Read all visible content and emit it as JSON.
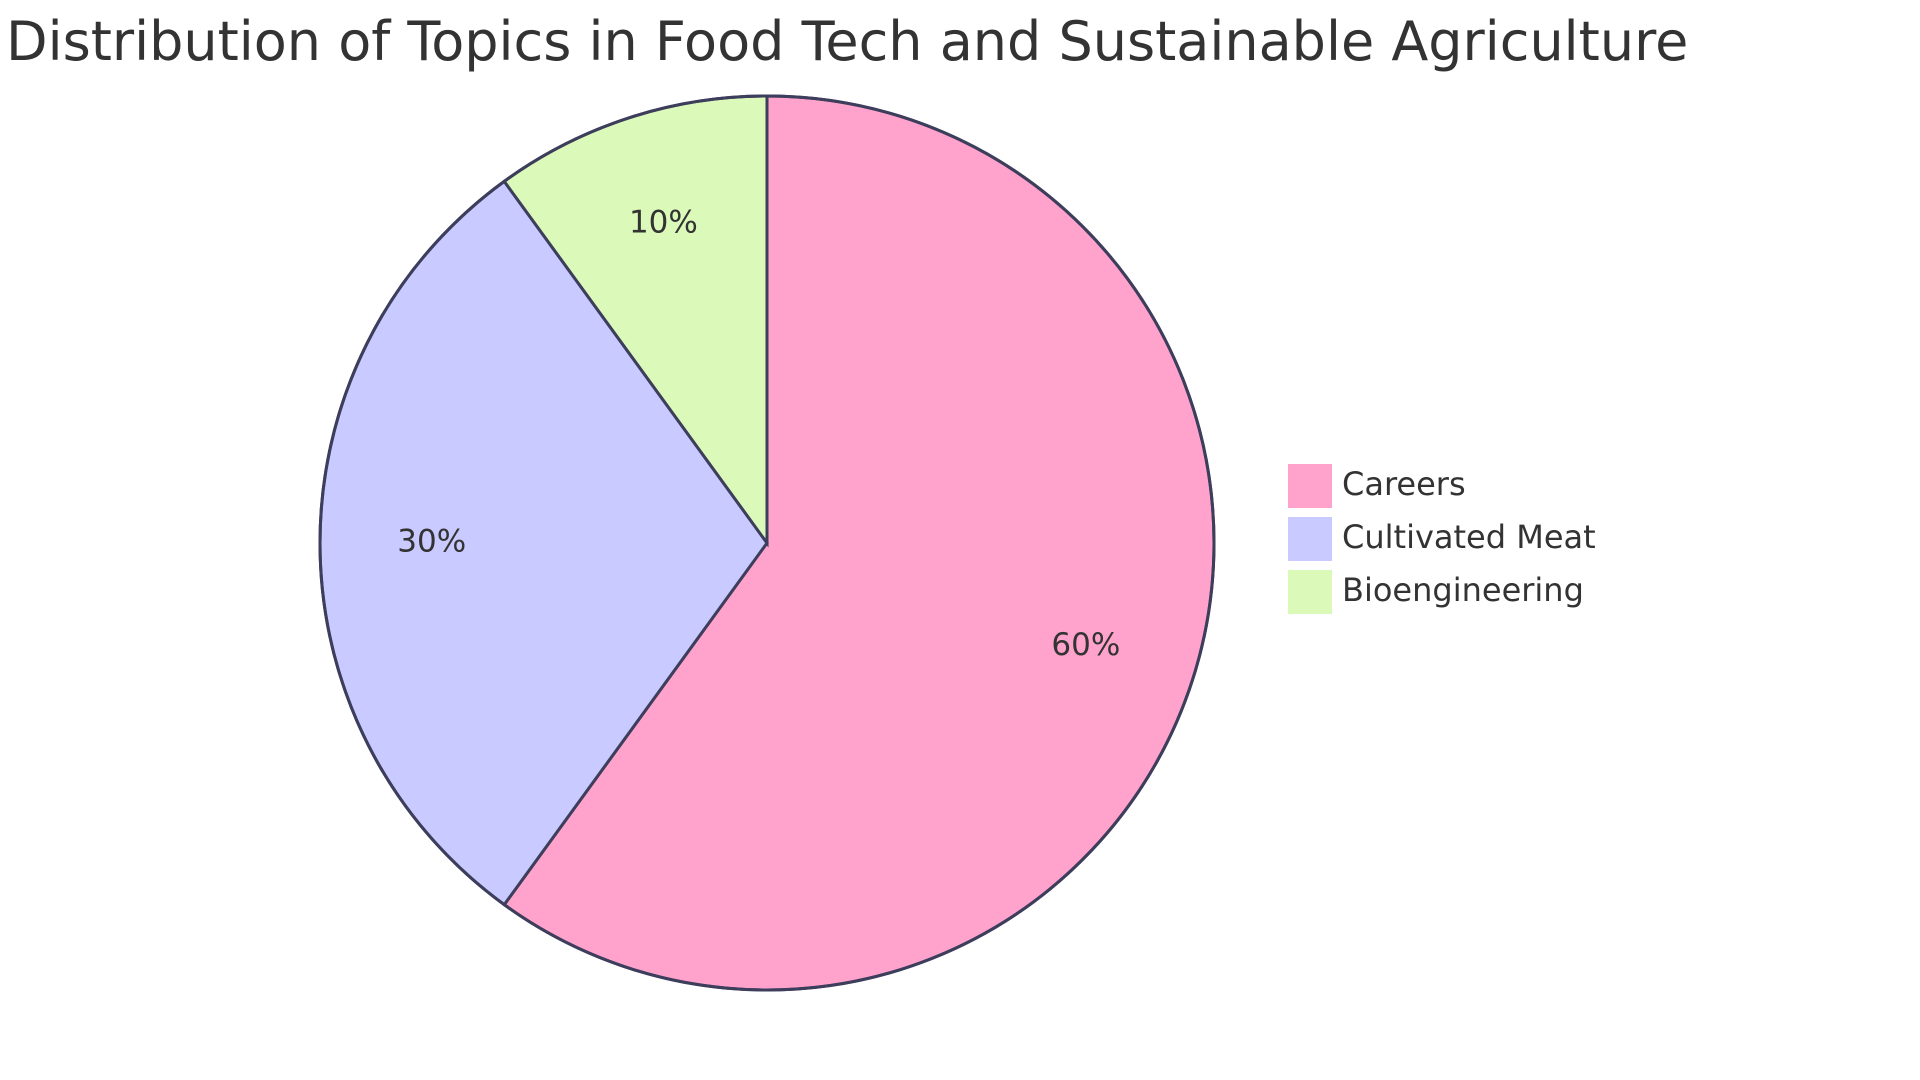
{
  "chart_data": {
    "type": "pie",
    "title": "Distribution of Topics in Food Tech and Sustainable Agriculture",
    "slices": [
      {
        "label": "Careers",
        "value": 60,
        "display": "60%",
        "color": "#FFA3CC"
      },
      {
        "label": "Cultivated Meat",
        "value": 30,
        "display": "30%",
        "color": "#C9CAFF"
      },
      {
        "label": "Bioengineering",
        "value": 10,
        "display": "10%",
        "color": "#DBFABA"
      }
    ],
    "legend_position": "right",
    "start_angle": "12 o'clock",
    "direction": "clockwise"
  }
}
